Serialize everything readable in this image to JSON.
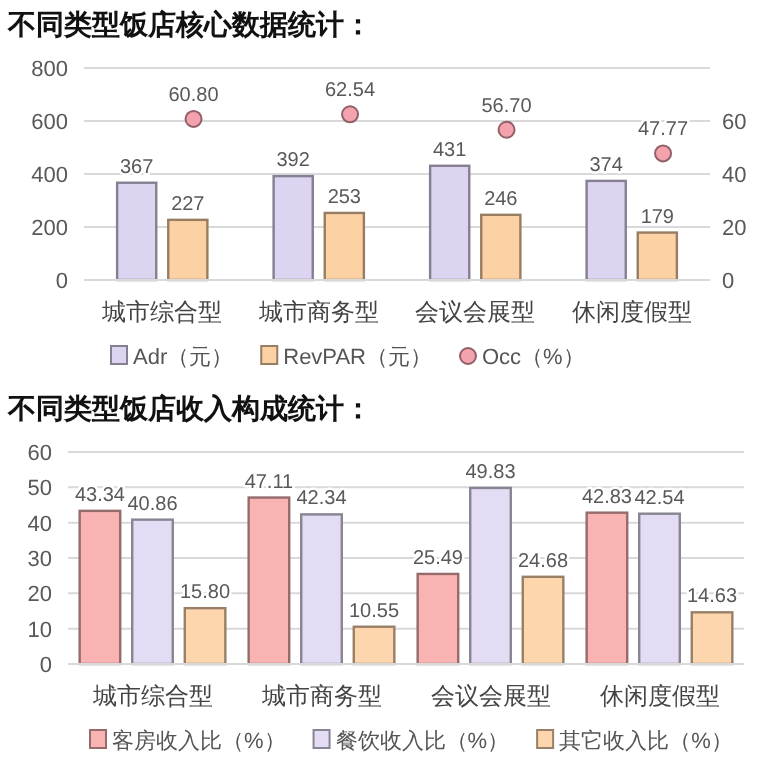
{
  "chart_data": [
    {
      "type": "bar",
      "title": "不同类型饭店核心数据统计：",
      "categories": [
        "城市综合型",
        "城市商务型",
        "会议会展型",
        "休闲度假型"
      ],
      "ylim": [
        0,
        800
      ],
      "yticks": [
        0,
        200,
        400,
        600,
        800
      ],
      "y2lim": [
        0,
        80
      ],
      "y2ticks": [
        0,
        20,
        40,
        60
      ],
      "grid": "y",
      "legend": "bottom",
      "series": [
        {
          "name": "Adr（元）",
          "color": "#ddd4f2",
          "values": [
            367,
            392,
            431,
            374
          ],
          "value_labels": [
            "367",
            "392",
            "431",
            "374"
          ]
        },
        {
          "name": "RevPAR（元）",
          "color": "#fcd1a4",
          "values": [
            227,
            253,
            246,
            179
          ],
          "value_labels": [
            "227",
            "253",
            "246",
            "179"
          ]
        },
        {
          "name": "Occ（%）",
          "type": "scatter",
          "axis": "y2",
          "marker": "circle",
          "color": "#f3a2ae",
          "values": [
            60.8,
            62.54,
            56.7,
            47.77
          ],
          "value_labels": [
            "60.80",
            "62.54",
            "56.70",
            "47.77"
          ]
        }
      ]
    },
    {
      "type": "bar",
      "title": "不同类型饭店收入构成统计：",
      "categories": [
        "城市综合型",
        "城市商务型",
        "会议会展型",
        "休闲度假型"
      ],
      "ylim": [
        0,
        60
      ],
      "yticks": [
        0,
        10,
        20,
        30,
        40,
        50,
        60
      ],
      "grid": "y",
      "legend": "bottom",
      "series": [
        {
          "name": "客房收入比（%）",
          "color": "#f9b3b3",
          "values": [
            43.34,
            47.11,
            25.49,
            42.83
          ],
          "value_labels": [
            "43.34",
            "47.11",
            "25.49",
            "42.83"
          ]
        },
        {
          "name": "餐饮收入比（%）",
          "color": "#e3dcf4",
          "values": [
            40.86,
            42.34,
            49.83,
            42.54
          ],
          "value_labels": [
            "40.86",
            "42.34",
            "49.83",
            "42.54"
          ]
        },
        {
          "name": "其它收入比（%）",
          "color": "#fdd6ad",
          "values": [
            15.8,
            10.55,
            24.68,
            14.63
          ],
          "value_labels": [
            "15.80",
            "10.55",
            "24.68",
            "14.63"
          ]
        }
      ]
    }
  ]
}
